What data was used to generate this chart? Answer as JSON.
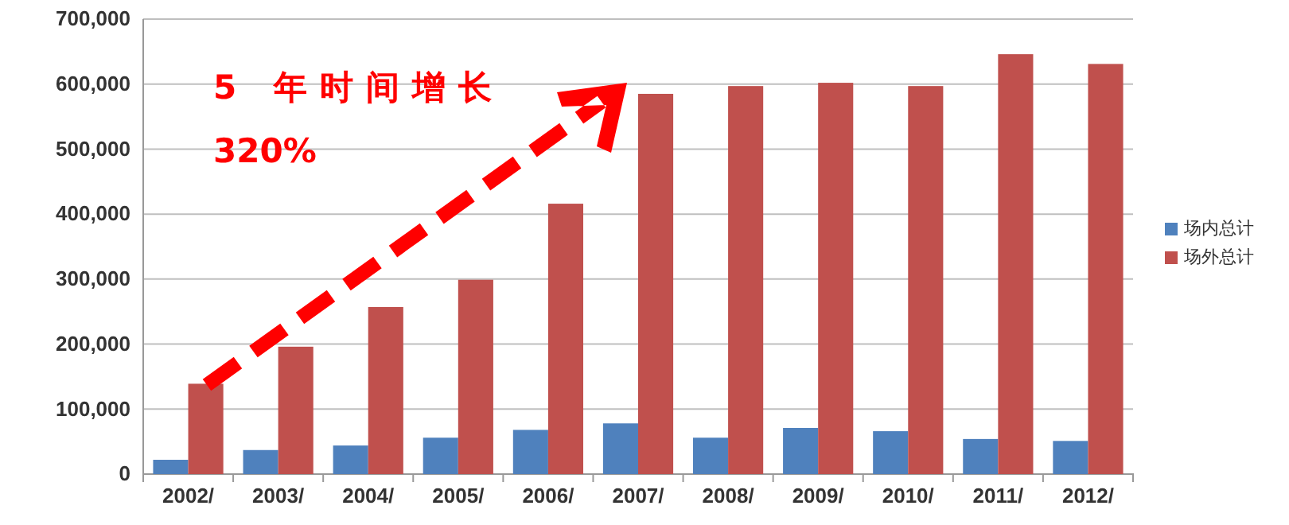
{
  "chart_data": {
    "type": "bar",
    "categories": [
      "2002/",
      "2003/",
      "2004/",
      "2005/",
      "2006/",
      "2007/",
      "2008/",
      "2009/",
      "2010/",
      "2011/",
      "2012/"
    ],
    "series": [
      {
        "name": "场内总计",
        "color": "#4f81bd",
        "values": [
          22000,
          37000,
          44000,
          56000,
          68000,
          78000,
          56000,
          71000,
          66000,
          54000,
          51000
        ]
      },
      {
        "name": "场外总计",
        "color": "#c0504d",
        "values": [
          139000,
          196000,
          257000,
          299000,
          416000,
          585000,
          597000,
          602000,
          597000,
          646000,
          631000
        ]
      }
    ],
    "ylim": [
      0,
      700000
    ],
    "yticks": [
      {
        "value": 0,
        "label": "0"
      },
      {
        "value": 100000,
        "label": "100,000"
      },
      {
        "value": 200000,
        "label": "200,000"
      },
      {
        "value": 300000,
        "label": "300,000"
      },
      {
        "value": 400000,
        "label": "400,000"
      },
      {
        "value": 500000,
        "label": "500,000"
      },
      {
        "value": 600000,
        "label": "600,000"
      },
      {
        "value": 700000,
        "label": "700,000"
      }
    ],
    "grid": "y",
    "legend": "right",
    "annotations": [
      "5 年时间增长",
      "320%"
    ]
  }
}
